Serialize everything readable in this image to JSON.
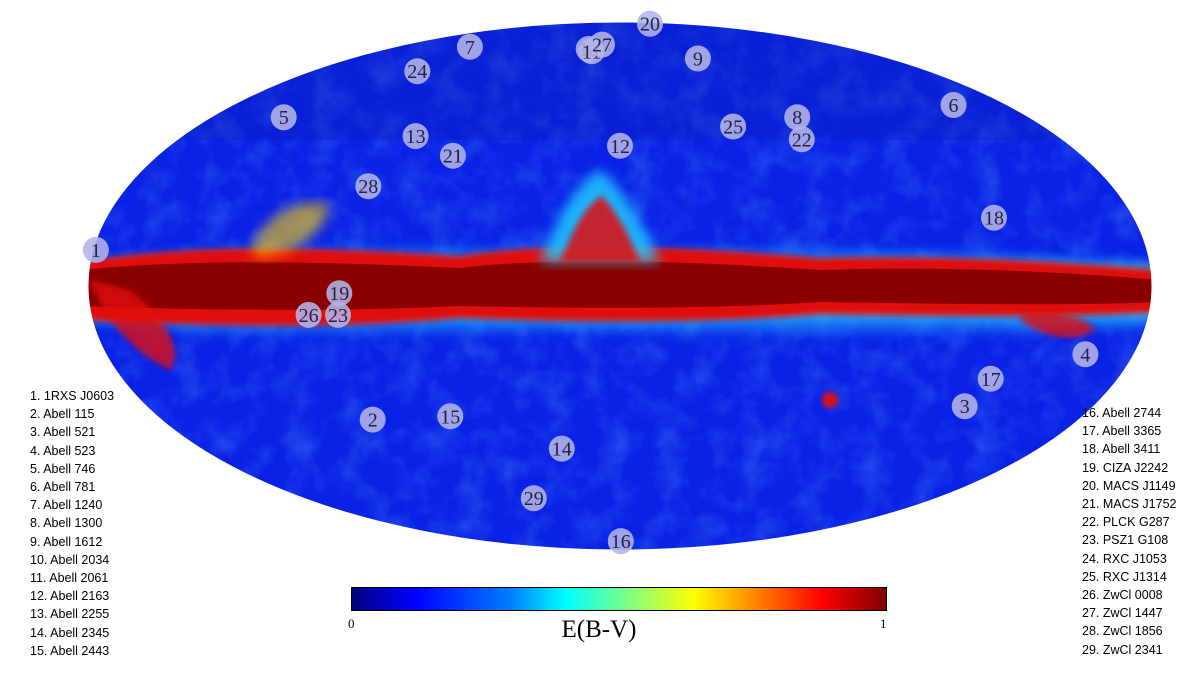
{
  "colors": {
    "sky_base": "#0a22e6",
    "sky_deep": "#0a1aa8",
    "plane_core": "#8a0000",
    "plane_red": "#e01010",
    "plane_yellow": "#ffd000",
    "plane_cyan": "#22c8ff",
    "marker_fill": "#b4b4e8"
  },
  "markers": [
    {
      "label": "1",
      "lon": 179,
      "lat": 10
    },
    {
      "label": "2",
      "lon": 97,
      "lat": -38
    },
    {
      "label": "3",
      "lon": -131,
      "lat": -34
    },
    {
      "label": "4",
      "lon": -163,
      "lat": -19
    },
    {
      "label": "5",
      "lon": 148,
      "lat": 49
    },
    {
      "label": "6",
      "lon": -155,
      "lat": 53
    },
    {
      "label": "7",
      "lon": 120,
      "lat": 75
    },
    {
      "label": "8",
      "lon": -78,
      "lat": 49
    },
    {
      "label": "9",
      "lon": -52,
      "lat": 70
    },
    {
      "label": "10",
      "lon": 24,
      "lat": 74
    },
    {
      "label": "11",
      "lon": 21,
      "lat": 73
    },
    {
      "label": "12",
      "lon": 0,
      "lat": 40
    },
    {
      "label": "13",
      "lon": 84,
      "lat": 43
    },
    {
      "label": "14",
      "lon": 25,
      "lat": -47
    },
    {
      "label": "15",
      "lon": 66,
      "lat": -37
    },
    {
      "label": "16",
      "lon": -1,
      "lat": -83
    },
    {
      "label": "17",
      "lon": -134,
      "lat": -26
    },
    {
      "label": "18",
      "lon": -131,
      "lat": 19
    },
    {
      "label": "19",
      "lon": 95,
      "lat": -2
    },
    {
      "label": "20",
      "lon": -90,
      "lat": 88
    },
    {
      "label": "21",
      "lon": 65,
      "lat": 37
    },
    {
      "label": "22",
      "lon": -74,
      "lat": 42
    },
    {
      "label": "23",
      "lon": 96,
      "lat": -8
    },
    {
      "label": "24",
      "lon": 118,
      "lat": 65
    },
    {
      "label": "25",
      "lon": -48,
      "lat": 46
    },
    {
      "label": "26",
      "lon": 106,
      "lat": -8
    },
    {
      "label": "27",
      "lon": 15,
      "lat": 76
    },
    {
      "label": "28",
      "lon": 92,
      "lat": 28
    },
    {
      "label": "29",
      "lon": 49,
      "lat": -64
    }
  ],
  "legend_left": [
    "1. 1RXS J0603",
    "2. Abell 115",
    "3. Abell 521",
    "4. Abell 523",
    "5. Abell 746",
    "6. Abell 781",
    "7. Abell 1240",
    "8. Abell 1300",
    "9. Abell 1612",
    "10. Abell 2034",
    "11. Abell 2061",
    "12. Abell 2163",
    "13. Abell 2255",
    "14. Abell 2345",
    "15. Abell 2443"
  ],
  "legend_right": [
    "16. Abell 2744",
    "17. Abell 3365",
    "18. Abell 3411",
    "19. CIZA J2242",
    "20. MACS J1149",
    "21. MACS J1752",
    "22. PLCK G287",
    "23. PSZ1 G108",
    "24. RXC J1053",
    "25. RXC J1314",
    "26. ZwCl 0008",
    "27. ZwCl 1447",
    "28. ZwCl 1856",
    "29. ZwCl 2341"
  ],
  "colorbar": {
    "min_label": "0",
    "max_label": "1",
    "title": "E(B-V)"
  }
}
